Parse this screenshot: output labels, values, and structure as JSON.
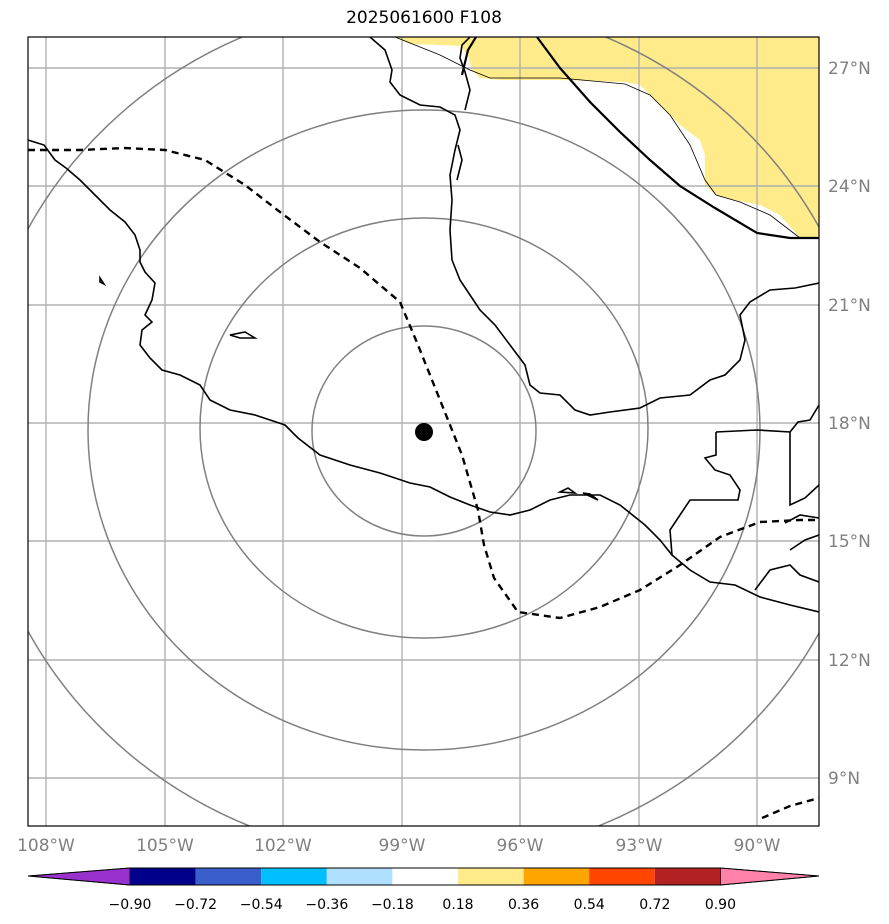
{
  "title": "2025061600 F108",
  "map": {
    "lon_ticks": [
      "108°W",
      "105°W",
      "102°W",
      "99°W",
      "96°W",
      "93°W",
      "90°W"
    ],
    "lat_ticks": [
      "27°N",
      "24°N",
      "21°N",
      "18°N",
      "15°N",
      "12°N",
      "9°N"
    ],
    "center_point": {
      "lon": -98.4,
      "lat": 17.8
    },
    "range_rings_count": 4
  },
  "colorbar": {
    "ticks": [
      "−0.90",
      "−0.72",
      "−0.54",
      "−0.36",
      "−0.18",
      "0.18",
      "0.36",
      "0.54",
      "0.72",
      "0.90"
    ],
    "colors": [
      "#9932cc",
      "#00008b",
      "#3a5fcd",
      "#00bfff",
      "#b0e0ff",
      "#ffffff",
      "#ffeb8a",
      "#ffa500",
      "#ff4500",
      "#b22222",
      "#ff82ab"
    ]
  }
}
